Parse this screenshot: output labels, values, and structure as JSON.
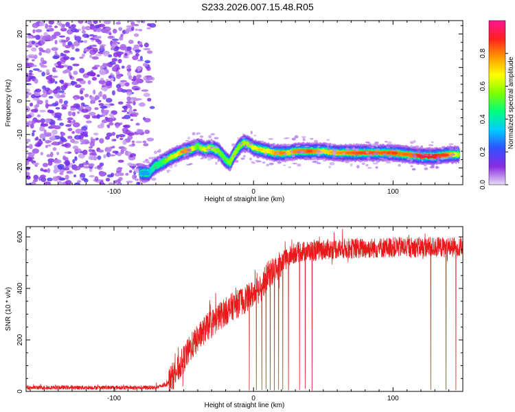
{
  "title": "S233.2026.007.15.48.R05",
  "chart_data": [
    {
      "type": "heatmap",
      "xlabel": "Height of straight line (km)",
      "ylabel": "Frequency (Hz)",
      "xlim": [
        -163,
        150
      ],
      "ylim": [
        -25,
        24
      ],
      "x_ticks": [
        -100,
        0,
        100
      ],
      "y_ticks": [
        -20,
        -10,
        0,
        10,
        20
      ],
      "colorbar": {
        "label": "Normalized spectral amplitude",
        "range": [
          0,
          1
        ],
        "ticks": [
          0,
          0.2,
          0.4,
          0.6,
          0.8
        ],
        "tick_labels": [
          "0.0",
          "0.2",
          "0.4",
          "0.6",
          "0.8"
        ],
        "colors": [
          "#e8ddf5",
          "#8a2be2",
          "#3050ff",
          "#00ccff",
          "#00ff7f",
          "#7cff00",
          "#ffff00",
          "#ff9900",
          "#ff2020",
          "#ff1493"
        ]
      },
      "noise_region_x": [
        -163,
        -72
      ],
      "ridge": {
        "x": [
          -81,
          -75,
          -71,
          -66,
          -60,
          -55,
          -50,
          -45,
          -40,
          -35,
          -30,
          -25,
          -20,
          -17,
          -14,
          -10,
          -7,
          -3,
          0,
          5,
          10,
          15,
          20,
          25,
          30,
          40,
          50,
          60,
          70,
          80,
          90,
          100,
          110,
          120,
          130,
          140,
          147
        ],
        "freq": [
          -21.5,
          -21.5,
          -19.5,
          -18.5,
          -17,
          -16,
          -15,
          -14.5,
          -13.5,
          -14.5,
          -14,
          -15,
          -17.5,
          -18.5,
          -16,
          -13.5,
          -12.5,
          -13,
          -14,
          -14.5,
          -15,
          -15.5,
          -15.5,
          -15.5,
          -15,
          -15,
          -15,
          -15.5,
          -15.5,
          -15.5,
          -15.5,
          -15.5,
          -16,
          -16.5,
          -16.5,
          -16,
          -16
        ],
        "amp": [
          0.3,
          0.3,
          0.45,
          0.45,
          0.6,
          0.65,
          0.8,
          0.75,
          0.5,
          0.65,
          0.6,
          0.55,
          0.5,
          0.55,
          0.6,
          0.55,
          0.6,
          0.6,
          0.65,
          0.7,
          0.65,
          0.75,
          0.8,
          0.7,
          0.8,
          0.85,
          0.7,
          0.75,
          0.8,
          0.85,
          0.8,
          0.85,
          0.8,
          0.9,
          0.95,
          0.8,
          0.6
        ]
      }
    },
    {
      "type": "line",
      "xlabel": "Height of straight line (km)",
      "ylabel": "SNR (10 * v/v)",
      "xlim": [
        -163,
        150
      ],
      "ylim": [
        0,
        640
      ],
      "x_ticks": [
        -100,
        0,
        100
      ],
      "y_ticks": [
        0,
        200,
        400,
        600
      ],
      "color": "#e8191a",
      "trend": {
        "x": [
          -163,
          -100,
          -70,
          -63,
          -55,
          -45,
          -35,
          -25,
          -15,
          -5,
          5,
          10,
          20,
          25,
          30,
          40,
          50,
          60,
          80,
          100,
          120,
          140,
          150
        ],
        "y": [
          15,
          15,
          15,
          25,
          80,
          170,
          240,
          290,
          330,
          360,
          400,
          450,
          500,
          520,
          540,
          545,
          550,
          555,
          555,
          560,
          560,
          560,
          560
        ]
      },
      "noise_amplitude": 25,
      "dropouts_x": [
        -3,
        2,
        6,
        9,
        12,
        15,
        18,
        21,
        25,
        33,
        37,
        42,
        127,
        138,
        145
      ]
    }
  ]
}
